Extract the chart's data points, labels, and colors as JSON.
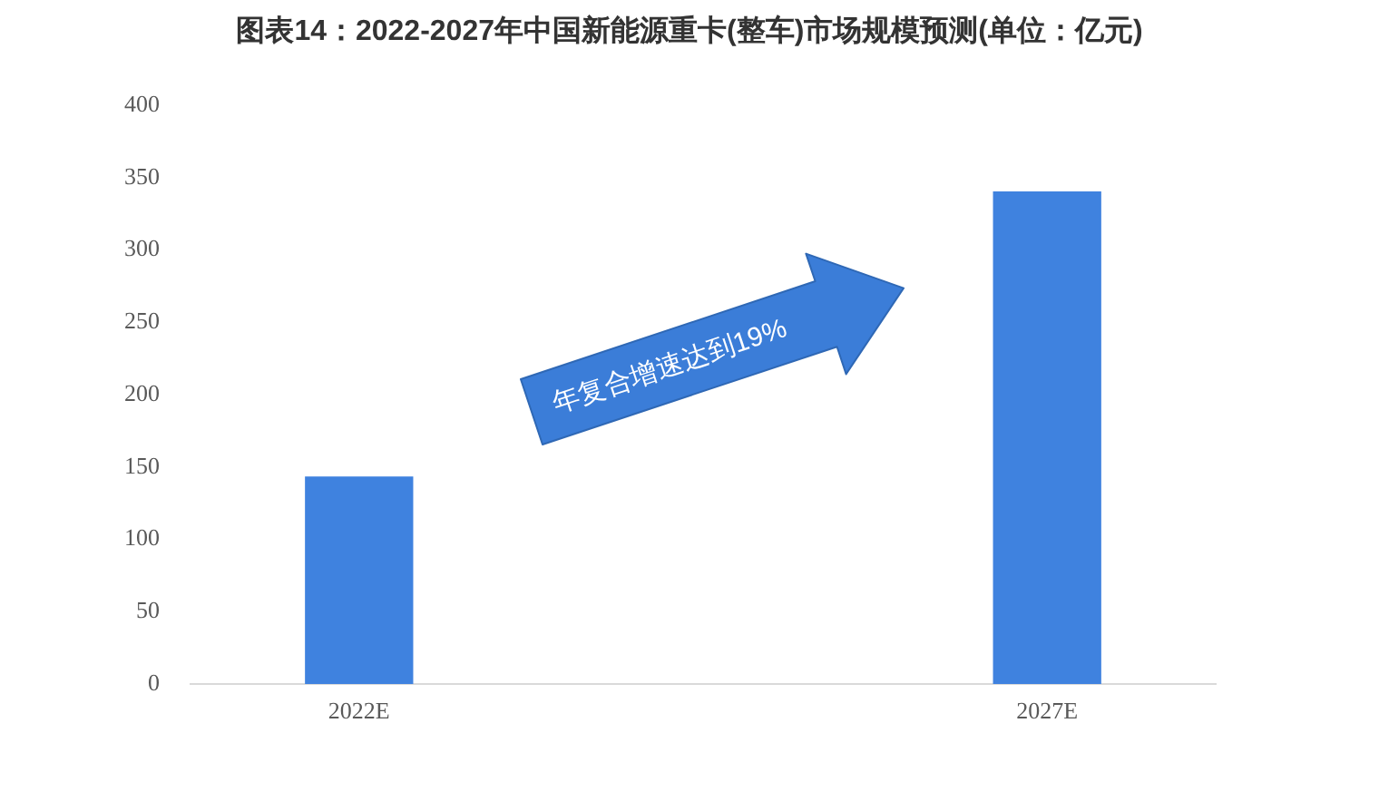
{
  "chart_data": {
    "type": "bar",
    "title": "图表14：2022-2027年中国新能源重卡(整车)市场规模预测(单位：亿元)",
    "categories": [
      "2022E",
      "2027E"
    ],
    "values": [
      143,
      340
    ],
    "color": "#3f82df",
    "ylim": [
      0,
      400
    ],
    "yticks": [
      0,
      50,
      100,
      150,
      200,
      250,
      300,
      350,
      400
    ],
    "annotations": [
      "年复合增速达到19%"
    ]
  }
}
